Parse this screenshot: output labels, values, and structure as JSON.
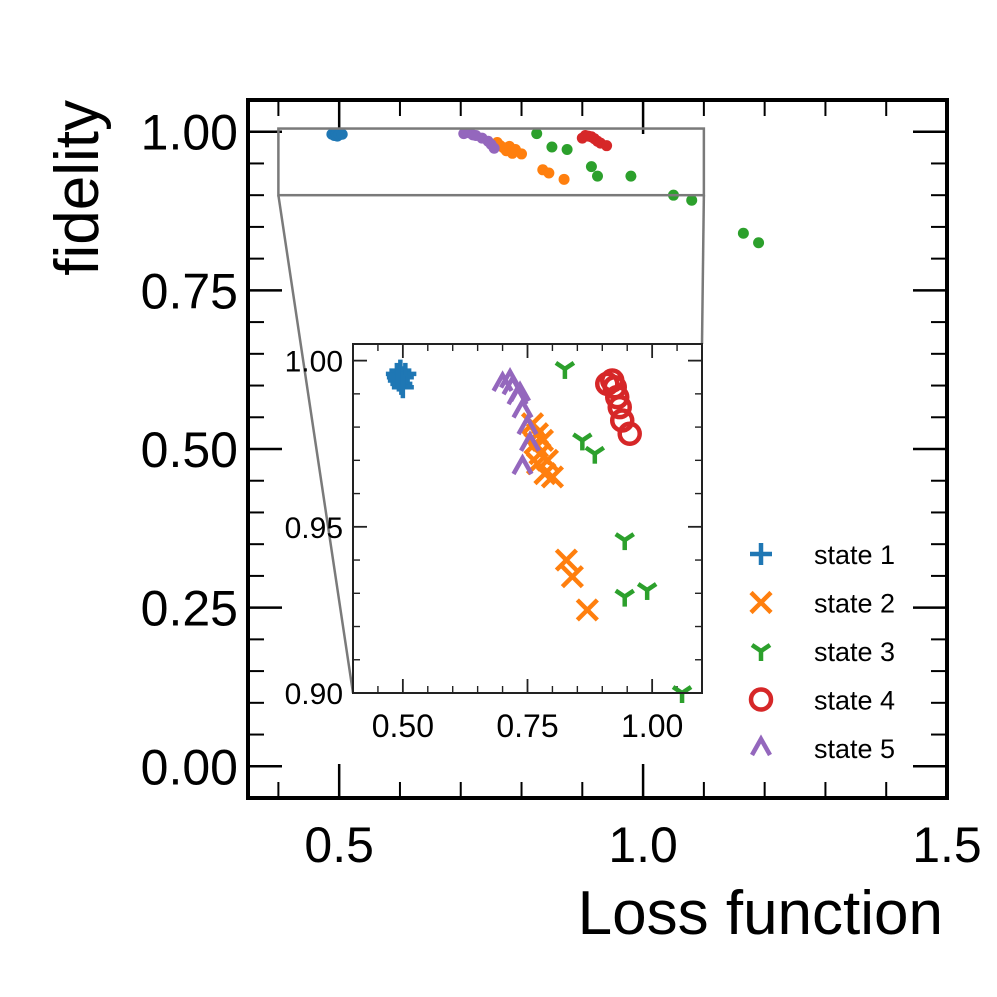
{
  "chart_data": [
    {
      "id": "main",
      "type": "scatter",
      "xlabel": "Loss function",
      "ylabel": "fidelity",
      "xlim": [
        0.35,
        1.5
      ],
      "ylim": [
        -0.05,
        1.05
      ],
      "xticks": [
        {
          "value": 0.5,
          "label": "0.5"
        },
        {
          "value": 1.0,
          "label": "1.0"
        },
        {
          "value": 1.5,
          "label": "1.5"
        }
      ],
      "yticks": [
        {
          "value": 0.0,
          "label": "0.00"
        },
        {
          "value": 0.25,
          "label": "0.25"
        },
        {
          "value": 0.5,
          "label": "0.50"
        },
        {
          "value": 0.75,
          "label": "0.75"
        },
        {
          "value": 1.0,
          "label": "1.00"
        }
      ],
      "zoom_box": {
        "x": [
          0.4,
          1.1
        ],
        "y": [
          0.9,
          1.005
        ]
      },
      "series": [
        {
          "name": "state 1",
          "color": "#1f77b4",
          "points": [
            [
              0.488,
              0.996
            ],
            [
              0.492,
              0.994
            ],
            [
              0.495,
              0.997
            ],
            [
              0.497,
              0.993
            ],
            [
              0.5,
              0.995
            ],
            [
              0.505,
              0.996
            ]
          ]
        },
        {
          "name": "state 2",
          "color": "#ff7f0e",
          "points": [
            [
              0.76,
              0.983
            ],
            [
              0.765,
              0.978
            ],
            [
              0.77,
              0.975
            ],
            [
              0.775,
              0.97
            ],
            [
              0.78,
              0.977
            ],
            [
              0.785,
              0.966
            ],
            [
              0.79,
              0.972
            ],
            [
              0.8,
              0.965
            ],
            [
              0.835,
              0.94
            ],
            [
              0.845,
              0.935
            ],
            [
              0.87,
              0.925
            ]
          ]
        },
        {
          "name": "state 3",
          "color": "#2ca02c",
          "points": [
            [
              0.825,
              0.997
            ],
            [
              0.85,
              0.976
            ],
            [
              0.875,
              0.972
            ],
            [
              0.915,
              0.945
            ],
            [
              0.925,
              0.93
            ],
            [
              0.98,
              0.93
            ],
            [
              1.05,
              0.9
            ],
            [
              1.08,
              0.892
            ],
            [
              1.165,
              0.84
            ],
            [
              1.19,
              0.825
            ]
          ]
        },
        {
          "name": "state 4",
          "color": "#d62728",
          "points": [
            [
              0.9,
              0.99
            ],
            [
              0.905,
              0.994
            ],
            [
              0.91,
              0.993
            ],
            [
              0.915,
              0.992
            ],
            [
              0.92,
              0.989
            ],
            [
              0.925,
              0.985
            ],
            [
              0.93,
              0.982
            ],
            [
              0.94,
              0.978
            ]
          ]
        },
        {
          "name": "state 5",
          "color": "#9467bd",
          "points": [
            [
              0.705,
              0.997
            ],
            [
              0.715,
              0.998
            ],
            [
              0.72,
              0.995
            ],
            [
              0.725,
              0.994
            ],
            [
              0.735,
              0.99
            ],
            [
              0.745,
              0.985
            ],
            [
              0.75,
              0.98
            ],
            [
              0.755,
              0.974
            ]
          ]
        }
      ]
    },
    {
      "id": "inset",
      "type": "scatter",
      "xlim": [
        0.4,
        1.1
      ],
      "ylim": [
        0.9,
        1.005
      ],
      "xticks": [
        {
          "value": 0.5,
          "label": "0.50"
        },
        {
          "value": 0.75,
          "label": "0.75"
        },
        {
          "value": 1.0,
          "label": "1.00"
        }
      ],
      "yticks": [
        {
          "value": 0.9,
          "label": "0.90"
        },
        {
          "value": 0.95,
          "label": "0.95"
        },
        {
          "value": 1.0,
          "label": "1.00"
        }
      ],
      "legend_position": "lower-right",
      "series": [
        {
          "name": "state 1",
          "color": "#1f77b4",
          "marker": "plus",
          "points": [
            [
              0.488,
              0.996
            ],
            [
              0.492,
              0.994
            ],
            [
              0.495,
              0.997
            ],
            [
              0.497,
              0.993
            ],
            [
              0.5,
              0.995
            ],
            [
              0.505,
              0.996
            ],
            [
              0.49,
              0.995
            ],
            [
              0.5,
              0.992
            ]
          ]
        },
        {
          "name": "state 2",
          "color": "#ff7f0e",
          "marker": "x",
          "points": [
            [
              0.76,
              0.981
            ],
            [
              0.77,
              0.978
            ],
            [
              0.765,
              0.975
            ],
            [
              0.775,
              0.972
            ],
            [
              0.78,
              0.976
            ],
            [
              0.77,
              0.969
            ],
            [
              0.785,
              0.966
            ],
            [
              0.79,
              0.97
            ],
            [
              0.8,
              0.965
            ],
            [
              0.828,
              0.94
            ],
            [
              0.84,
              0.935
            ],
            [
              0.87,
              0.925
            ]
          ]
        },
        {
          "name": "state 3",
          "color": "#2ca02c",
          "marker": "tri_down",
          "points": [
            [
              0.825,
              0.9975
            ],
            [
              0.86,
              0.976
            ],
            [
              0.885,
              0.972
            ],
            [
              0.945,
              0.946
            ],
            [
              0.945,
              0.929
            ],
            [
              0.99,
              0.931
            ],
            [
              1.06,
              0.9
            ]
          ]
        },
        {
          "name": "state 4",
          "color": "#d62728",
          "marker": "circle",
          "points": [
            [
              0.91,
              0.993
            ],
            [
              0.92,
              0.994
            ],
            [
              0.925,
              0.992
            ],
            [
              0.93,
              0.989
            ],
            [
              0.935,
              0.986
            ],
            [
              0.94,
              0.982
            ],
            [
              0.955,
              0.978
            ]
          ]
        },
        {
          "name": "state 5",
          "color": "#9467bd",
          "marker": "caret_up",
          "points": [
            [
              0.7,
              0.993
            ],
            [
              0.715,
              0.994
            ],
            [
              0.72,
              0.992
            ],
            [
              0.73,
              0.989
            ],
            [
              0.735,
              0.99
            ],
            [
              0.74,
              0.985
            ],
            [
              0.75,
              0.98
            ],
            [
              0.755,
              0.975
            ],
            [
              0.74,
              0.968
            ]
          ]
        }
      ]
    }
  ]
}
